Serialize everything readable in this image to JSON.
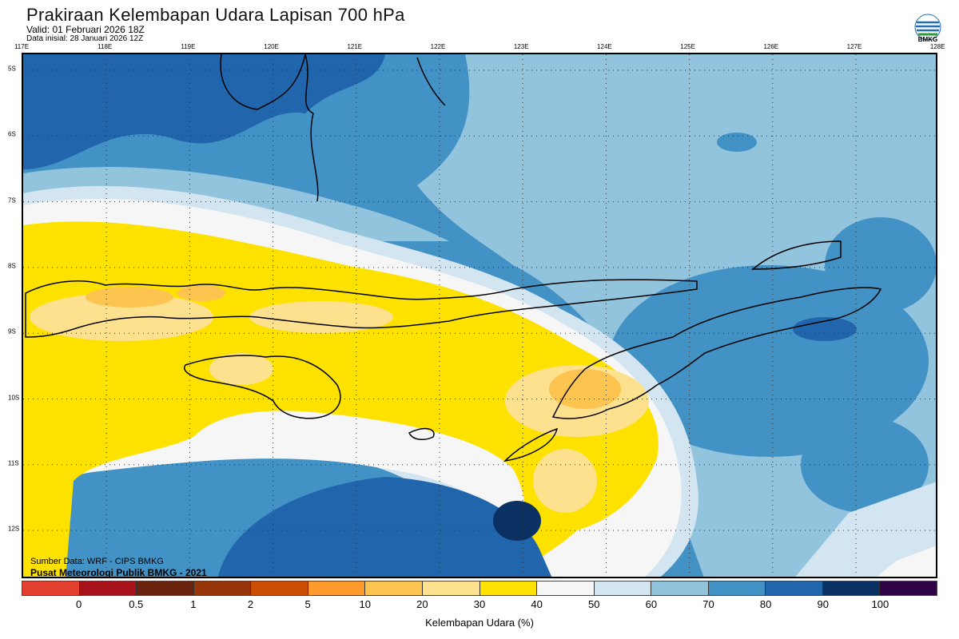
{
  "header": {
    "title": "Prakiraan Kelembapan Udara Lapisan 700 hPa",
    "valid": "Valid: 01 Februari 2026 18Z",
    "init": "Data inisial: 28 Januari 2026 12Z"
  },
  "logo": {
    "text": "BMKG"
  },
  "axes": {
    "lon_ticks": [
      "117E",
      "118E",
      "119E",
      "120E",
      "121E",
      "122E",
      "123E",
      "124E",
      "125E",
      "126E",
      "127E",
      "128E"
    ],
    "lat_ticks": [
      "5S",
      "6S",
      "7S",
      "8S",
      "9S",
      "10S",
      "11S",
      "12S"
    ]
  },
  "footer": {
    "source": "Sumber Data: WRF - CIPS BMKG",
    "credit": "Pusat Meteorologi Publik BMKG - 2021"
  },
  "colorbar": {
    "title": "Kelembapan Udara (%)",
    "labels": [
      "0",
      "0.5",
      "1",
      "2",
      "5",
      "10",
      "20",
      "30",
      "40",
      "50",
      "60",
      "70",
      "80",
      "90",
      "100"
    ],
    "colors": [
      "#e3402f",
      "#a8121a",
      "#69230e",
      "#963509",
      "#cc4d04",
      "#fd9a2b",
      "#fec450",
      "#fee18f",
      "#fde200",
      "#f6f6f6",
      "#d2e5f0",
      "#93c4de",
      "#4392c6",
      "#2166ad",
      "#0a3161",
      "#2e0446"
    ]
  }
}
